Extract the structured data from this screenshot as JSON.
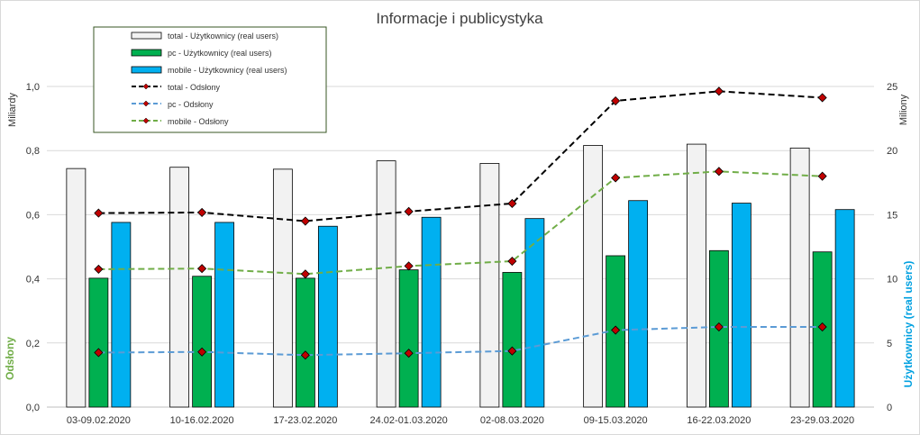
{
  "chart_data": {
    "type": "bar",
    "title": "Informacje i publicystyka",
    "categories": [
      "03-09.02.2020",
      "10-16.02.2020",
      "17-23.02.2020",
      "24.02-01.03.2020",
      "02-08.03.2020",
      "09-15.03.2020",
      "16-22.03.2020",
      "23-29.03.2020"
    ],
    "left_axis": {
      "title": "Odsłony",
      "unit_label": "Miliardy",
      "range": [
        0,
        1.0
      ],
      "ticks": [
        "0,0",
        "0,2",
        "0,4",
        "0,6",
        "0,8",
        "1,0"
      ],
      "title_color": "#70AD47"
    },
    "right_axis": {
      "title": "Użytkownicy (real users)",
      "unit_label": "Miliony",
      "range": [
        0,
        25
      ],
      "ticks": [
        "0",
        "5",
        "10",
        "15",
        "20",
        "25"
      ],
      "title_color": "#00A0E0"
    },
    "bar_series": [
      {
        "name": "total - Użytkownicy (real users)",
        "color": "#F2F2F2",
        "axis": "right",
        "values": [
          18.6,
          18.7,
          18.55,
          19.2,
          19.0,
          20.4,
          20.5,
          20.2
        ]
      },
      {
        "name": "pc - Użytkownicy (real users)",
        "color": "#00B050",
        "axis": "right",
        "values": [
          10.05,
          10.2,
          10.05,
          10.7,
          10.5,
          11.8,
          12.2,
          12.1
        ]
      },
      {
        "name": "mobile - Użytkownicy (real users)",
        "color": "#00B0F0",
        "axis": "right",
        "values": [
          14.4,
          14.4,
          14.1,
          14.8,
          14.7,
          16.1,
          15.9,
          15.4
        ]
      }
    ],
    "line_series": [
      {
        "name": "total - Odsłony",
        "color": "#000000",
        "axis": "left",
        "values": [
          0.605,
          0.607,
          0.58,
          0.61,
          0.635,
          0.955,
          0.985,
          0.965
        ]
      },
      {
        "name": "pc - Odsłony",
        "color": "#5B9BD5",
        "axis": "left",
        "values": [
          0.17,
          0.172,
          0.162,
          0.168,
          0.175,
          0.24,
          0.25,
          0.25
        ]
      },
      {
        "name": "mobile - Odsłony",
        "color": "#70AD47",
        "axis": "left",
        "values": [
          0.43,
          0.432,
          0.415,
          0.44,
          0.455,
          0.715,
          0.735,
          0.72
        ]
      }
    ],
    "marker_color": "#C00000",
    "grid": true,
    "legend_position": "top-left"
  }
}
